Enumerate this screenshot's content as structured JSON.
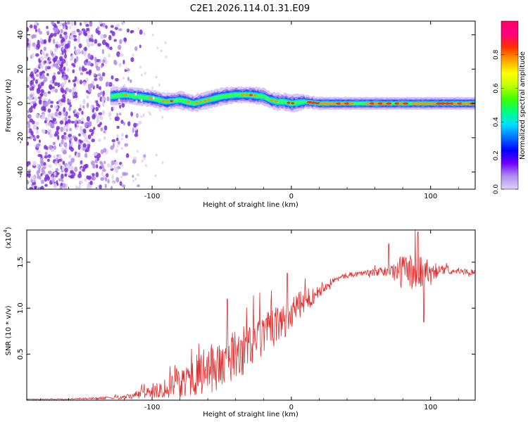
{
  "figure_title": "C2E1.2026.114.01.31.E09",
  "colors": {
    "snr_line": "#e03030",
    "scatter": "#7a2fd8",
    "axis": "#000000",
    "colorbar_stops": [
      "#e0d0f8",
      "#b090f0",
      "#7000ff",
      "#0000ff",
      "#0070ff",
      "#00e0ff",
      "#00ff80",
      "#40ff00",
      "#c0ff00",
      "#ffff00",
      "#ffa000",
      "#ff3000",
      "#ff0080",
      "#ff0066"
    ]
  },
  "chart_data": [
    {
      "type": "heatmap",
      "name": "spectrogram",
      "xlabel": "Height of straight line (km)",
      "ylabel": "Frequency (Hz)",
      "xlim": [
        -190,
        132
      ],
      "ylim": [
        -50,
        48
      ],
      "xticks": [
        -100,
        0,
        100
      ],
      "xtick_labels": [
        "-100",
        "0",
        "100"
      ],
      "yticks": [
        -40,
        -20,
        0,
        20,
        40
      ],
      "ytick_labels": [
        "-40",
        "-20",
        "0",
        "20",
        "40"
      ],
      "noise_region_x": [
        -190,
        -100
      ],
      "signal_start_x": -130,
      "signal_ridge": {
        "x": [
          -130,
          -120,
          -110,
          -100,
          -90,
          -80,
          -70,
          -60,
          -50,
          -40,
          -30,
          -20,
          -15,
          -10,
          -5,
          0,
          10,
          20,
          40,
          60,
          80,
          100,
          120,
          132
        ],
        "freq": [
          4,
          5,
          4,
          3,
          1,
          2,
          0,
          2,
          4,
          5,
          5,
          4,
          2,
          1,
          1,
          0,
          1,
          0,
          0,
          0,
          0,
          0,
          0,
          0
        ]
      },
      "colorbar": {
        "label": "Normalized spectral amplitude",
        "min": 0,
        "max": 1,
        "ticks": [
          0.0,
          0.2,
          0.4,
          0.6,
          0.8
        ],
        "tick_labels": [
          "0.0",
          "0.2",
          "0.4",
          "0.6",
          "0.8"
        ]
      }
    },
    {
      "type": "line",
      "name": "snr",
      "xlabel": "Height of straight line (km)",
      "ylabel": "SNR (10 * v/v)",
      "y_exponent_label": "(x10",
      "y_exponent_power": "4",
      "xlim": [
        -190,
        132
      ],
      "ylim": [
        0,
        1.85
      ],
      "xticks": [
        -100,
        0,
        100
      ],
      "xtick_labels": [
        "-100",
        "0",
        "100"
      ],
      "yticks": [
        0.5,
        1.0,
        1.5
      ],
      "ytick_labels": [
        "0.5",
        "1.0",
        "1.5"
      ],
      "series": [
        {
          "name": "SNR",
          "x": [
            -190,
            -160,
            -140,
            -120,
            -110,
            -100,
            -90,
            -80,
            -70,
            -60,
            -50,
            -40,
            -30,
            -20,
            -10,
            0,
            10,
            20,
            30,
            40,
            50,
            60,
            70,
            80,
            90,
            100,
            110,
            120,
            132
          ],
          "y": [
            0.01,
            0.01,
            0.02,
            0.03,
            0.06,
            0.1,
            0.14,
            0.2,
            0.26,
            0.32,
            0.4,
            0.48,
            0.58,
            0.7,
            0.82,
            0.95,
            1.08,
            1.2,
            1.3,
            1.36,
            1.38,
            1.39,
            1.4,
            1.4,
            1.4,
            1.41,
            1.41,
            1.4,
            1.39
          ],
          "noise_amplitude": [
            0.005,
            0.005,
            0.01,
            0.02,
            0.05,
            0.08,
            0.12,
            0.18,
            0.22,
            0.26,
            0.3,
            0.28,
            0.26,
            0.24,
            0.2,
            0.18,
            0.14,
            0.08,
            0.03,
            0.03,
            0.03,
            0.04,
            0.06,
            0.2,
            0.22,
            0.12,
            0.04,
            0.03,
            0.03
          ],
          "peaks": [
            {
              "x": -46,
              "y": 1.1
            },
            {
              "x": -3,
              "y": 1.38
            },
            {
              "x": 70,
              "y": 1.7
            },
            {
              "x": 91,
              "y": 1.83
            },
            {
              "x": 95,
              "y": 0.85
            }
          ]
        }
      ]
    }
  ]
}
